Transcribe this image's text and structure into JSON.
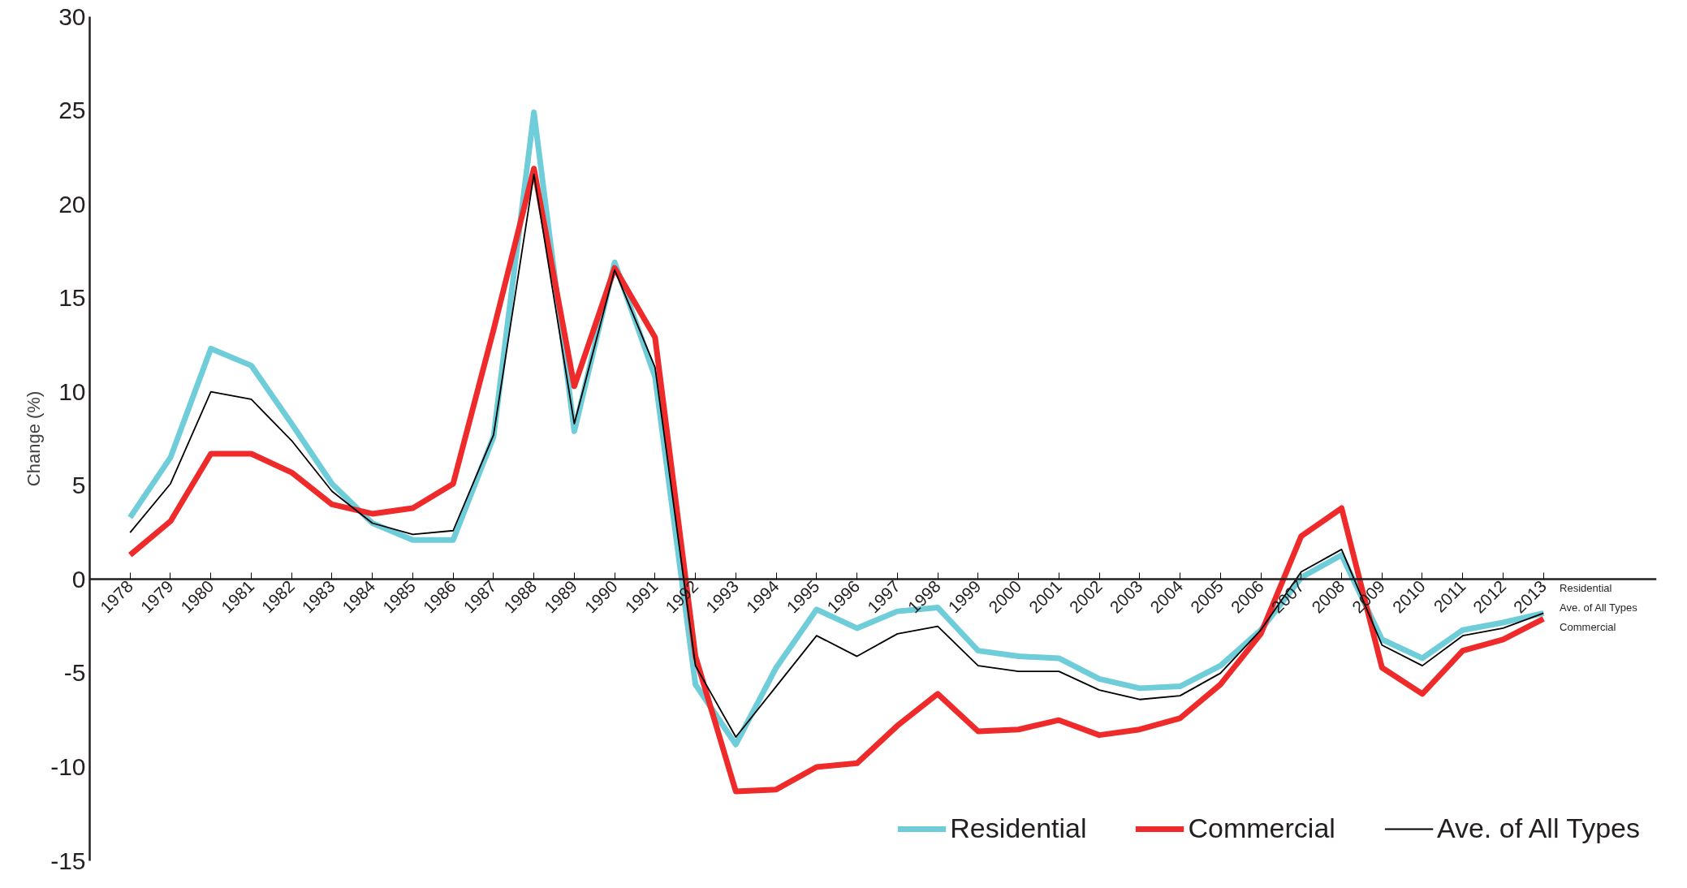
{
  "chart_data": {
    "type": "line",
    "ylabel": "Change (%)",
    "categories": [
      "1978",
      "1979",
      "1980",
      "1981",
      "1982",
      "1983",
      "1984",
      "1985",
      "1986",
      "1987",
      "1988",
      "1989",
      "1990",
      "1991",
      "1992",
      "1993",
      "1994",
      "1995",
      "1996",
      "1997",
      "1998",
      "1999",
      "2000",
      "2001",
      "2002",
      "2003",
      "2004",
      "2005",
      "2006",
      "2007",
      "2008",
      "2009",
      "2010",
      "2011",
      "2012",
      "2013"
    ],
    "ylim": [
      -15,
      30
    ],
    "yticks": [
      -15,
      -10,
      -5,
      0,
      5,
      10,
      15,
      20,
      25,
      30
    ],
    "grid": false,
    "legend": "bottom right",
    "marker": "none",
    "line_style": "solid",
    "series": [
      {
        "name": "Residential",
        "color": "#6ecdd8",
        "values": [
          3.3,
          6.5,
          12.3,
          11.4,
          8.3,
          5.1,
          3.0,
          2.1,
          2.1,
          7.6,
          24.9,
          7.9,
          16.9,
          10.8,
          -5.6,
          -8.8,
          -4.7,
          -1.6,
          -2.6,
          -1.7,
          -1.5,
          -3.8,
          -4.1,
          -4.2,
          -5.3,
          -5.8,
          -5.7,
          -4.6,
          -2.7,
          0.1,
          1.3,
          -3.2,
          -4.2,
          -2.7,
          -2.3,
          -1.8
        ]
      },
      {
        "name": "Commercial",
        "color": "#ee2a2a",
        "values": [
          1.3,
          3.1,
          6.7,
          6.7,
          5.7,
          4.0,
          3.5,
          3.8,
          5.1,
          13.3,
          21.9,
          10.3,
          16.6,
          12.9,
          -4.1,
          -11.3,
          -11.2,
          -10.0,
          -9.8,
          -7.8,
          -6.1,
          -8.1,
          -8.0,
          -7.5,
          -8.3,
          -8.0,
          -7.4,
          -5.6,
          -2.9,
          2.3,
          3.8,
          -4.7,
          -6.1,
          -3.8,
          -3.2,
          -2.1
        ]
      },
      {
        "name": "Ave. of All Types",
        "color": "#000000",
        "values": [
          2.5,
          5.1,
          10.0,
          9.6,
          7.4,
          4.7,
          3.0,
          2.4,
          2.6,
          7.7,
          21.6,
          8.3,
          16.5,
          11.3,
          -4.6,
          -8.4,
          -5.7,
          -3.0,
          -4.1,
          -2.9,
          -2.5,
          -4.6,
          -4.9,
          -4.9,
          -5.9,
          -6.4,
          -6.2,
          -5.0,
          -2.7,
          0.4,
          1.6,
          -3.5,
          -4.6,
          -3.0,
          -2.6,
          -1.8
        ]
      }
    ]
  }
}
